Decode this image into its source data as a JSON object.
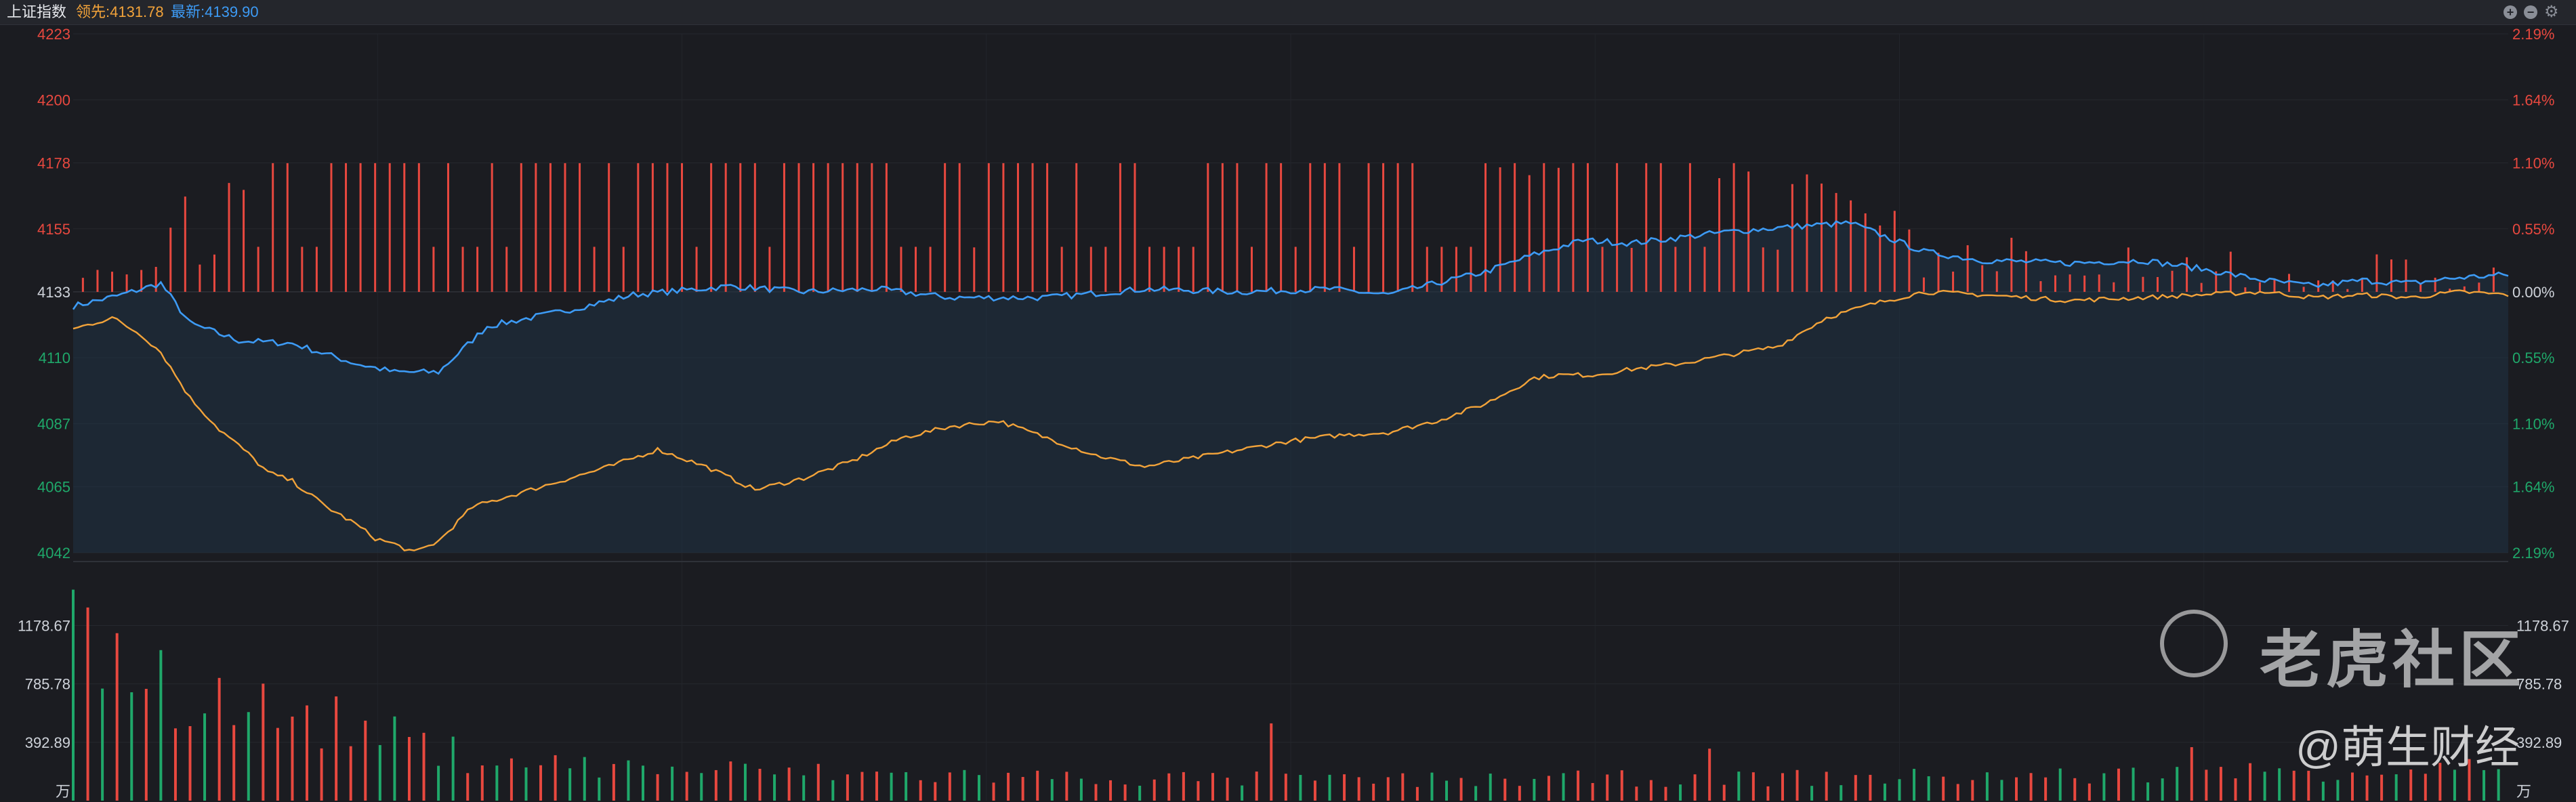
{
  "header": {
    "title": "上证指数",
    "lead_text": "领先:4131.78",
    "latest_text": "最新:4139.90",
    "buttons": [
      "plus-circle-icon",
      "minus-circle-icon",
      "gear-icon"
    ]
  },
  "watermark": {
    "brand": "老虎社区",
    "author": "@萌生财经",
    "logo_icon": "tiger-community-logo-icon"
  },
  "colors": {
    "background": "#1b1c21",
    "up": "#e8483f",
    "down": "#1fa86a",
    "index_line": "#3d9bf5",
    "lead_line": "#f2a33a",
    "fill": "#1f3346"
  },
  "chart_data": {
    "type": "line",
    "x_points": 241,
    "prev_close": 4133,
    "price_axis": {
      "ticks": [
        "4223",
        "4200",
        "4178",
        "4155",
        "4133",
        "4110",
        "4087",
        "4065",
        "4042"
      ],
      "values": [
        4223,
        4200,
        4178,
        4155,
        4133,
        4110,
        4087,
        4065,
        4042
      ],
      "pct_ticks": [
        "2.19%",
        "1.64%",
        "1.10%",
        "0.55%",
        "0.00%",
        "0.55%",
        "1.10%",
        "1.64%",
        "2.19%"
      ],
      "ylim": [
        4042,
        4223
      ]
    },
    "volume_axis": {
      "ticks": [
        "1178.67",
        "785.78",
        "392.89"
      ],
      "values": [
        1178.67,
        785.78,
        392.89
      ],
      "unit": "万",
      "ylim": [
        0,
        1550
      ]
    },
    "latest_anchors": [
      [
        0,
        4128
      ],
      [
        10,
        4132
      ],
      [
        18,
        4136
      ],
      [
        24,
        4122
      ],
      [
        34,
        4116
      ],
      [
        45,
        4115
      ],
      [
        58,
        4108
      ],
      [
        66,
        4105
      ],
      [
        75,
        4105
      ],
      [
        85,
        4121
      ],
      [
        100,
        4126
      ],
      [
        115,
        4132
      ],
      [
        135,
        4135
      ],
      [
        150,
        4133
      ],
      [
        165,
        4134
      ],
      [
        180,
        4131
      ],
      [
        200,
        4131
      ],
      [
        220,
        4134
      ],
      [
        240,
        4133
      ],
      [
        258,
        4134
      ],
      [
        270,
        4132
      ],
      [
        290,
        4140
      ],
      [
        300,
        4146
      ],
      [
        310,
        4151
      ],
      [
        320,
        4150
      ],
      [
        340,
        4154
      ],
      [
        355,
        4156
      ],
      [
        365,
        4157
      ],
      [
        380,
        4147
      ],
      [
        392,
        4144
      ],
      [
        410,
        4143
      ],
      [
        425,
        4144
      ],
      [
        437,
        4141
      ],
      [
        450,
        4137
      ],
      [
        460,
        4135
      ],
      [
        470,
        4137
      ],
      [
        480,
        4136
      ],
      [
        490,
        4138
      ],
      [
        500,
        4139
      ]
    ],
    "lead_anchors": [
      [
        0,
        4120
      ],
      [
        8,
        4124
      ],
      [
        14,
        4118
      ],
      [
        18,
        4112
      ],
      [
        24,
        4096
      ],
      [
        30,
        4085
      ],
      [
        35,
        4078
      ],
      [
        40,
        4070
      ],
      [
        45,
        4067
      ],
      [
        52,
        4058
      ],
      [
        58,
        4052
      ],
      [
        62,
        4047
      ],
      [
        66,
        4045
      ],
      [
        70,
        4042
      ],
      [
        75,
        4046
      ],
      [
        82,
        4058
      ],
      [
        90,
        4062
      ],
      [
        100,
        4067
      ],
      [
        110,
        4072
      ],
      [
        120,
        4078
      ],
      [
        130,
        4072
      ],
      [
        140,
        4064
      ],
      [
        150,
        4068
      ],
      [
        160,
        4074
      ],
      [
        170,
        4082
      ],
      [
        180,
        4086
      ],
      [
        190,
        4088
      ],
      [
        200,
        4082
      ],
      [
        210,
        4076
      ],
      [
        220,
        4072
      ],
      [
        230,
        4075
      ],
      [
        240,
        4078
      ],
      [
        250,
        4081
      ],
      [
        260,
        4083
      ],
      [
        270,
        4084
      ],
      [
        280,
        4088
      ],
      [
        290,
        4094
      ],
      [
        300,
        4103
      ],
      [
        305,
        4104
      ],
      [
        312,
        4104
      ],
      [
        320,
        4106
      ],
      [
        330,
        4108
      ],
      [
        340,
        4111
      ],
      [
        350,
        4114
      ],
      [
        360,
        4124
      ],
      [
        370,
        4129
      ],
      [
        380,
        4133
      ],
      [
        392,
        4132
      ],
      [
        410,
        4130
      ],
      [
        425,
        4131
      ],
      [
        437,
        4132
      ],
      [
        450,
        4133
      ],
      [
        460,
        4131
      ],
      [
        470,
        4132
      ],
      [
        480,
        4131
      ],
      [
        490,
        4133
      ],
      [
        500,
        4132
      ]
    ],
    "volume_anchors": [
      [
        0,
        1420
      ],
      [
        5,
        1180
      ],
      [
        10,
        1100
      ],
      [
        15,
        950
      ],
      [
        20,
        880
      ],
      [
        25,
        820
      ],
      [
        30,
        740
      ],
      [
        40,
        660
      ],
      [
        50,
        600
      ],
      [
        60,
        520
      ],
      [
        70,
        420
      ],
      [
        80,
        340
      ],
      [
        90,
        310
      ],
      [
        100,
        270
      ],
      [
        110,
        250
      ],
      [
        120,
        240
      ],
      [
        130,
        230
      ],
      [
        140,
        220
      ],
      [
        150,
        210
      ],
      [
        160,
        200
      ],
      [
        170,
        190
      ],
      [
        180,
        190
      ],
      [
        190,
        180
      ],
      [
        200,
        175
      ],
      [
        210,
        170
      ],
      [
        220,
        165
      ],
      [
        240,
        160
      ],
      [
        260,
        150
      ],
      [
        280,
        155
      ],
      [
        300,
        160
      ],
      [
        320,
        165
      ],
      [
        340,
        170
      ],
      [
        360,
        170
      ],
      [
        380,
        175
      ],
      [
        400,
        180
      ],
      [
        420,
        190
      ],
      [
        440,
        210
      ],
      [
        460,
        230
      ],
      [
        480,
        240
      ],
      [
        500,
        250
      ]
    ],
    "volume_spikes": [
      [
        0,
        1420
      ],
      [
        3,
        1300
      ],
      [
        246,
        520
      ],
      [
        335,
        350
      ],
      [
        434,
        360
      ]
    ]
  }
}
